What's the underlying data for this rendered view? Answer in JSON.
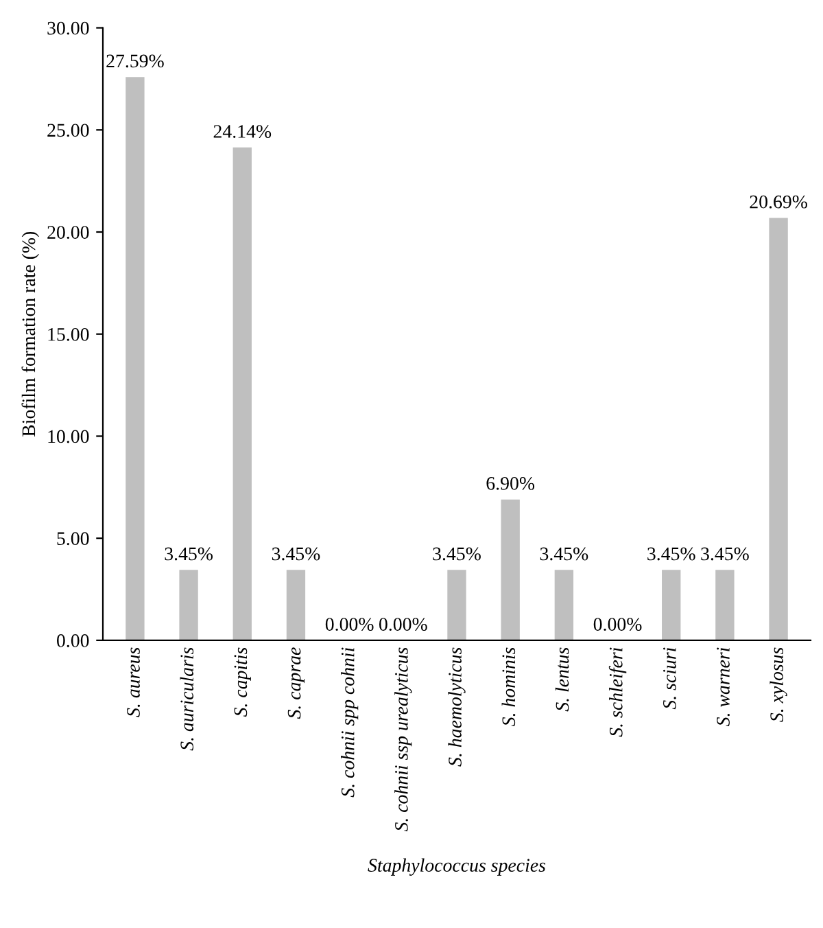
{
  "chart_data": {
    "type": "bar",
    "xlabel": "Staphylococcus species",
    "ylabel": "Biofilm formation rate (%)",
    "categories": [
      "S. aureus",
      "S. auricularis",
      "S. capitis",
      "S. caprae",
      "S. cohnii spp cohnii",
      "S. cohnii ssp urealyticus",
      "S. haemolyticus",
      "S. hominis",
      "S. lentus",
      "S. schleiferi",
      "S. sciuri",
      "S. warneri",
      "S. xylosus"
    ],
    "values": [
      27.59,
      3.45,
      24.14,
      3.45,
      0.0,
      0.0,
      3.45,
      6.9,
      3.45,
      0.0,
      3.45,
      3.45,
      20.69
    ],
    "value_labels": [
      "27.59%",
      "3.45%",
      "24.14%",
      "3.45%",
      "0.00%",
      "0.00%",
      "3.45%",
      "6.90%",
      "3.45%",
      "0.00%",
      "3.45%",
      "3.45%",
      "20.69%"
    ],
    "color": "#bfbfbf",
    "ylim": [
      0,
      30
    ],
    "yticks": [
      {
        "value": 0,
        "label": "0.00"
      },
      {
        "value": 5,
        "label": "5.00"
      },
      {
        "value": 10,
        "label": "10.00"
      },
      {
        "value": 15,
        "label": "15.00"
      },
      {
        "value": 20,
        "label": "20.00"
      },
      {
        "value": 25,
        "label": "25.00"
      },
      {
        "value": 30,
        "label": "30.00"
      }
    ],
    "grid": false,
    "legend": false
  }
}
